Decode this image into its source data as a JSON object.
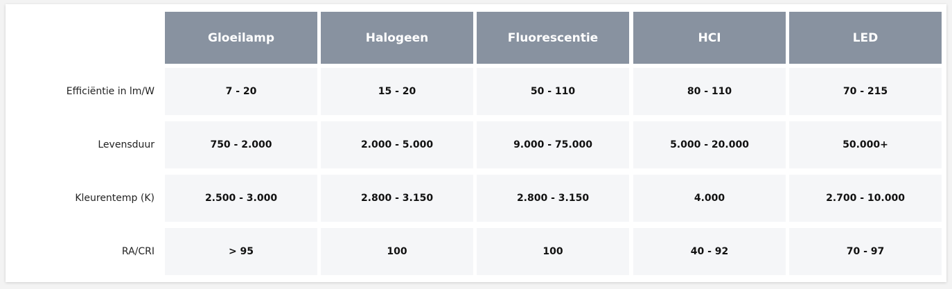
{
  "columns": [
    "Gloeilamp",
    "Halogeen",
    "Fluorescentie",
    "HCI",
    "LED"
  ],
  "rows": [
    {
      "label": "Efficiëntie in lm/W",
      "values": [
        "7 - 20",
        "15 - 20",
        "50 - 110",
        "80 - 110",
        "70 - 215"
      ]
    },
    {
      "label": "Levensduur",
      "values": [
        "750 - 2.000",
        "2.000 - 5.000",
        "9.000 - 75.000",
        "5.000 - 20.000",
        "50.000+"
      ]
    },
    {
      "label": "Kleurentemp (K)",
      "values": [
        "2.500 - 3.000",
        "2.800 - 3.150",
        "2.800 - 3.150",
        "4.000",
        "2.700 - 10.000"
      ]
    },
    {
      "label": "RA/CRI",
      "values": [
        "> 95",
        "100",
        "100",
        "40 - 92",
        "70 - 97"
      ]
    }
  ],
  "colors": {
    "header_bg": "#8892a0",
    "cell_bg": "#f5f6f8"
  }
}
